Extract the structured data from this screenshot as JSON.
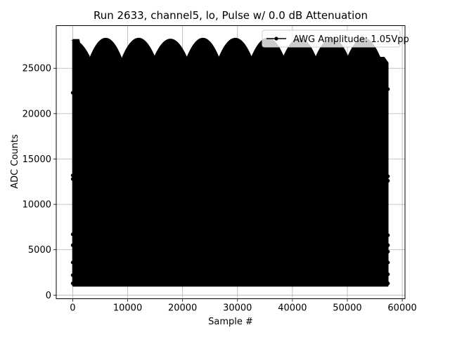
{
  "chart_data": {
    "type": "line",
    "title": "Run 2633, channel5, lo, Pulse w/ 0.0 dB Attenuation",
    "xlabel": "Sample #",
    "ylabel": "ADC Counts",
    "xlim": [
      -3000,
      60500
    ],
    "ylim": [
      -400,
      29700
    ],
    "xticks": [
      0,
      10000,
      20000,
      30000,
      40000,
      50000,
      60000
    ],
    "xtick_labels": [
      "0",
      "10000",
      "20000",
      "30000",
      "40000",
      "50000",
      "60000"
    ],
    "yticks": [
      0,
      5000,
      10000,
      15000,
      20000,
      25000
    ],
    "ytick_labels": [
      "0",
      "5000",
      "10000",
      "15000",
      "20000",
      "25000"
    ],
    "grid": true,
    "legend_position": "upper right",
    "series": [
      {
        "name": "AWG Amplitude: 1.05Vpp",
        "color": "#000000",
        "marker": "dot",
        "x_range": [
          0,
          57400
        ],
        "baseline": 1050,
        "envelope_peaks_x": [
          0,
          6000,
          12000,
          17800,
          23700,
          29600,
          35500,
          41300,
          47200,
          53000
        ],
        "envelope_peak_values": [
          28100,
          28300,
          28300,
          28200,
          28300,
          28300,
          28300,
          28300,
          28300,
          28300
        ],
        "envelope_trough_values": [
          26400,
          26000,
          26200,
          26200,
          26100,
          26200,
          26200,
          26200,
          26200,
          26200
        ],
        "start_value": 28100,
        "end_value": 25600,
        "scattered_markers": [
          {
            "x": 0,
            "y": 22300
          },
          {
            "x": 0,
            "y": 13200
          },
          {
            "x": 0,
            "y": 12800
          },
          {
            "x": 0,
            "y": 6700
          },
          {
            "x": 0,
            "y": 5500
          },
          {
            "x": 0,
            "y": 3600
          },
          {
            "x": 0,
            "y": 2200
          },
          {
            "x": 0,
            "y": 1300
          },
          {
            "x": 57400,
            "y": 22700
          },
          {
            "x": 57400,
            "y": 13100
          },
          {
            "x": 57400,
            "y": 12600
          },
          {
            "x": 57400,
            "y": 6600
          },
          {
            "x": 57400,
            "y": 5500
          },
          {
            "x": 57400,
            "y": 4800
          },
          {
            "x": 57400,
            "y": 3600
          },
          {
            "x": 57400,
            "y": 2300
          },
          {
            "x": 57400,
            "y": 1300
          }
        ]
      }
    ]
  },
  "colors": {
    "background": "#ffffff",
    "axes_frame": "#000000",
    "grid": "#b0b0b0",
    "line": "#000000",
    "legend_border": "#cccccc"
  }
}
